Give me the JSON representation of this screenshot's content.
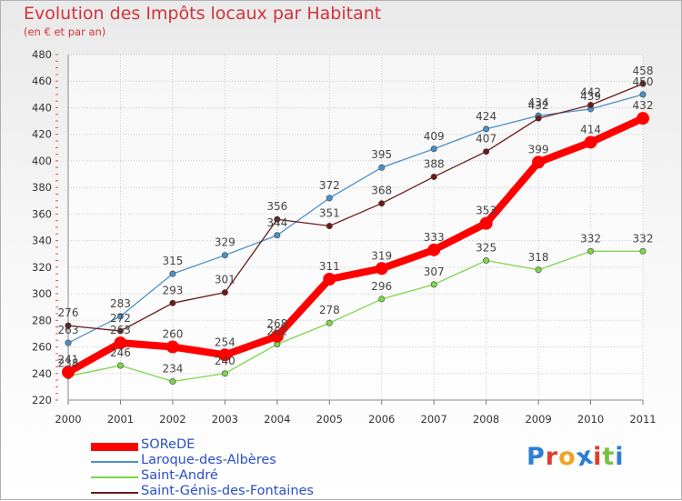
{
  "chart_data": {
    "type": "line",
    "title": "Evolution des Impôts locaux par Habitant",
    "subtitle": "(en € et par an)",
    "x": [
      "2000",
      "2001",
      "2002",
      "2003",
      "2004",
      "2005",
      "2006",
      "2007",
      "2008",
      "2009",
      "2010",
      "2011"
    ],
    "ylim": [
      220,
      480
    ],
    "yticks": [
      220,
      240,
      260,
      280,
      300,
      320,
      340,
      360,
      380,
      400,
      420,
      440,
      460,
      480
    ],
    "grid": true,
    "legend_position": "bottom-left",
    "series": [
      {
        "name": "SOReDE",
        "color": "#ff0000",
        "values": [
          241,
          263,
          260,
          254,
          268,
          311,
          319,
          333,
          353,
          399,
          414,
          432
        ]
      },
      {
        "name": "Laroque-des-Albères",
        "color": "#4a90c8",
        "values": [
          263,
          283,
          315,
          329,
          344,
          372,
          395,
          409,
          424,
          434,
          439,
          450
        ]
      },
      {
        "name": "Saint-André",
        "color": "#7dd64a",
        "values": [
          238,
          246,
          234,
          240,
          262,
          278,
          296,
          307,
          325,
          318,
          332,
          332
        ]
      },
      {
        "name": "Saint-Génis-des-Fontaines",
        "color": "#6b1a1a",
        "values": [
          276,
          272,
          293,
          301,
          356,
          351,
          368,
          388,
          407,
          432,
          442,
          458
        ]
      }
    ]
  },
  "logo": {
    "text": "Proxiti",
    "letter_colors": [
      "#2c7fd1",
      "#e23c2c",
      "#f0a224",
      "#2c7fd1",
      "#e23c2c",
      "#7bc043",
      "#2c7fd1"
    ]
  }
}
